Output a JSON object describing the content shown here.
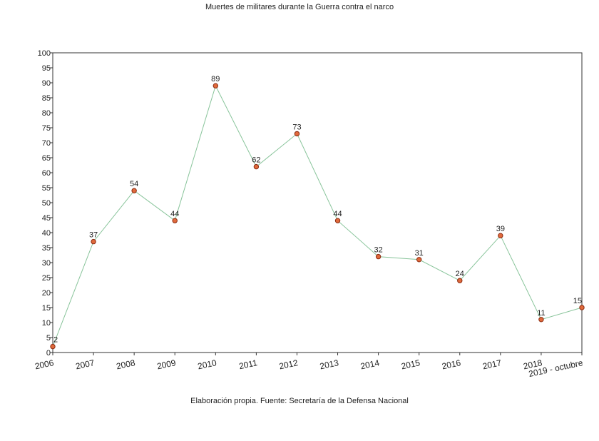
{
  "chart_data": {
    "type": "line",
    "title": "Muertes de militares durante la Guerra contra el narco",
    "caption": "Elaboración propia. Fuente: Secretaría de la Defensa Nacional",
    "xlabel": "",
    "ylabel": "",
    "categories": [
      "2006",
      "2007",
      "2008",
      "2009",
      "2010",
      "2011",
      "2012",
      "2013",
      "2014",
      "2015",
      "2016",
      "2017",
      "2018",
      "2019 - octubre"
    ],
    "series": [
      {
        "values": [
          2,
          37,
          54,
          44,
          89,
          62,
          73,
          44,
          32,
          31,
          24,
          39,
          11,
          15
        ]
      }
    ],
    "ylim": [
      0,
      100
    ],
    "yticks": [
      0,
      5,
      10,
      15,
      20,
      25,
      30,
      35,
      40,
      45,
      50,
      55,
      60,
      65,
      70,
      75,
      80,
      85,
      90,
      95,
      100
    ],
    "grid": false,
    "legend": "none",
    "colors": {
      "line": "#88c49a",
      "marker_fill": "#e06a3c",
      "marker_stroke": "#8a2a10"
    }
  }
}
